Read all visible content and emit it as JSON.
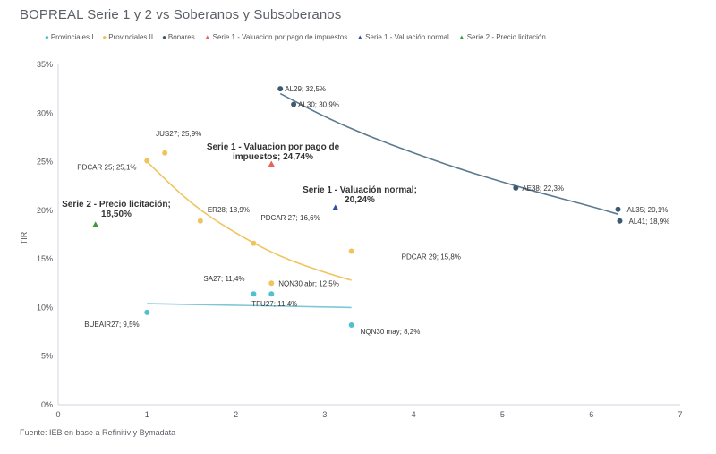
{
  "title": "BOPREAL Serie 1 y 2 vs Soberanos y Subsoberanos",
  "source": "Fuente: IEB en base a Refinitiv y Bymadata",
  "colors": {
    "provinciales1": "#4fc1cf",
    "provinciales2": "#f0c35d",
    "bonares": "#3d5a73",
    "serie1_pago": "#e8645a",
    "serie1_normal": "#2f4fb0",
    "serie2": "#3f9a3a",
    "trend_bonares": "#5b7a8f",
    "trend_prov2": "#f0c35d",
    "trend_prov1": "#7fc7d6"
  },
  "chart_data": {
    "type": "scatter",
    "title": "BOPREAL Serie 1 y 2 vs Soberanos y Subsoberanos",
    "xlabel": "",
    "ylabel": "TIR",
    "xlim": [
      0,
      7
    ],
    "ylim": [
      0,
      35
    ],
    "x_ticks": [
      "0",
      "1",
      "2",
      "3",
      "4",
      "5",
      "6",
      "7"
    ],
    "y_ticks": [
      "0%",
      "5%",
      "10%",
      "15%",
      "20%",
      "25%",
      "30%",
      "35%"
    ],
    "grid": false,
    "legend_position": "top",
    "series": [
      {
        "name": "Provinciales I",
        "marker": "circle",
        "color_key": "provinciales1",
        "points": [
          {
            "x": 1.0,
            "y": 9.5,
            "label": "BUEAIR27; 9,5%"
          },
          {
            "x": 2.2,
            "y": 11.4,
            "label": "SA27; 11,4%"
          },
          {
            "x": 2.4,
            "y": 11.4,
            "label": "TFU27; 11,4%"
          },
          {
            "x": 3.3,
            "y": 8.2,
            "label": "NQN30 may; 8,2%"
          }
        ],
        "trend": [
          [
            1.0,
            10.4
          ],
          [
            3.3,
            10.0
          ]
        ]
      },
      {
        "name": "Provinciales II",
        "marker": "circle",
        "color_key": "provinciales2",
        "points": [
          {
            "x": 1.0,
            "y": 25.1,
            "label": "PDCAR 25; 25,1%"
          },
          {
            "x": 1.2,
            "y": 25.9,
            "label": "JUS27; 25,9%"
          },
          {
            "x": 1.6,
            "y": 18.9,
            "label": "ER28; 18,9%"
          },
          {
            "x": 2.2,
            "y": 16.6,
            "label": "PDCAR 27; 16,6%"
          },
          {
            "x": 2.4,
            "y": 12.5,
            "label": "NQN30 abr; 12,5%"
          },
          {
            "x": 3.3,
            "y": 15.8,
            "label": "PDCAR 29; 15,8%"
          }
        ],
        "trend": [
          [
            1.0,
            25.0
          ],
          [
            1.5,
            20.6
          ],
          [
            2.0,
            17.6
          ],
          [
            2.5,
            15.2
          ],
          [
            3.0,
            13.6
          ],
          [
            3.3,
            12.8
          ]
        ]
      },
      {
        "name": "Bonares",
        "marker": "circle",
        "color_key": "bonares",
        "points": [
          {
            "x": 2.5,
            "y": 32.5,
            "label": "AL29; 32,5%"
          },
          {
            "x": 2.65,
            "y": 30.9,
            "label": "AL30; 30,9%"
          },
          {
            "x": 5.15,
            "y": 22.3,
            "label": "AE38; 22,3%"
          },
          {
            "x": 6.3,
            "y": 20.1,
            "label": "AL35; 20,1%"
          },
          {
            "x": 6.32,
            "y": 18.9,
            "label": "AL41; 18,9%"
          }
        ],
        "trend": [
          [
            2.5,
            32.0
          ],
          [
            3.0,
            29.6
          ],
          [
            3.5,
            27.6
          ],
          [
            4.0,
            25.9
          ],
          [
            4.5,
            24.3
          ],
          [
            5.0,
            22.9
          ],
          [
            5.5,
            21.6
          ],
          [
            6.0,
            20.4
          ],
          [
            6.3,
            19.6
          ]
        ]
      },
      {
        "name": "Serie 1 - Valuacion por pago de impuestos",
        "marker": "triangle",
        "color_key": "serie1_pago",
        "points": [
          {
            "x": 2.4,
            "y": 24.74,
            "label": "Serie 1 - Valuacion por pago de impuestos; 24,74%"
          }
        ]
      },
      {
        "name": "Serie 1 - Valuación normal",
        "marker": "triangle",
        "color_key": "serie1_normal",
        "points": [
          {
            "x": 3.12,
            "y": 20.24,
            "label": "Serie 1 - Valuación normal; 20,24%"
          }
        ]
      },
      {
        "name": "Serie 2 - Precio licitación",
        "marker": "triangle",
        "color_key": "serie2",
        "points": [
          {
            "x": 0.42,
            "y": 18.5,
            "label": "Serie 2 - Precio licitación; 18,50%"
          }
        ]
      }
    ],
    "annotations": [
      {
        "id": "serie1_pago",
        "lines": [
          "Serie 1 - Valuacion por pago de",
          "impuestos; 24,74%"
        ]
      },
      {
        "id": "serie1_normal",
        "lines": [
          "Serie 1 - Valuación normal;",
          "20,24%"
        ]
      },
      {
        "id": "serie2",
        "lines": [
          "Serie 2 - Precio licitación;",
          "18,50%"
        ]
      }
    ]
  }
}
